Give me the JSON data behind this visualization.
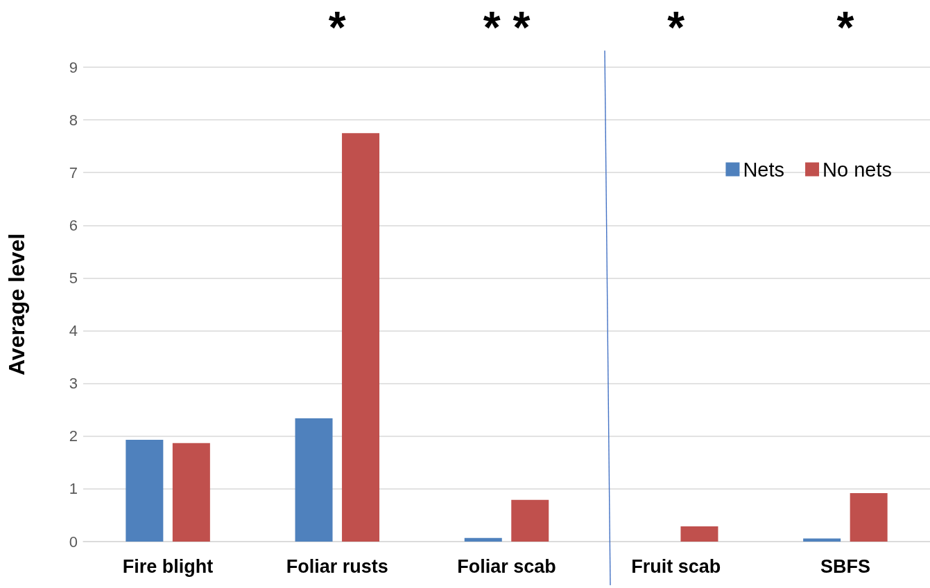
{
  "chart_data": {
    "type": "bar",
    "ylabel": "Average level",
    "categories": [
      "Fire blight",
      "Foliar rusts",
      "Foliar scab",
      "Fruit scab",
      "SBFS"
    ],
    "series": [
      {
        "name": "Nets",
        "color": "#4f81bd",
        "values": [
          1.93,
          2.34,
          0.07,
          0,
          0.06
        ]
      },
      {
        "name": "No nets",
        "color": "#c0504d",
        "values": [
          1.87,
          7.75,
          0.79,
          0.29,
          0.92
        ]
      }
    ],
    "ylim": [
      0,
      9
    ],
    "yticks": [
      0,
      1,
      2,
      3,
      4,
      5,
      6,
      7,
      8,
      9
    ],
    "grid": "y",
    "legend": "top right",
    "annotations": [
      "*",
      "* *",
      "*",
      "*"
    ]
  }
}
